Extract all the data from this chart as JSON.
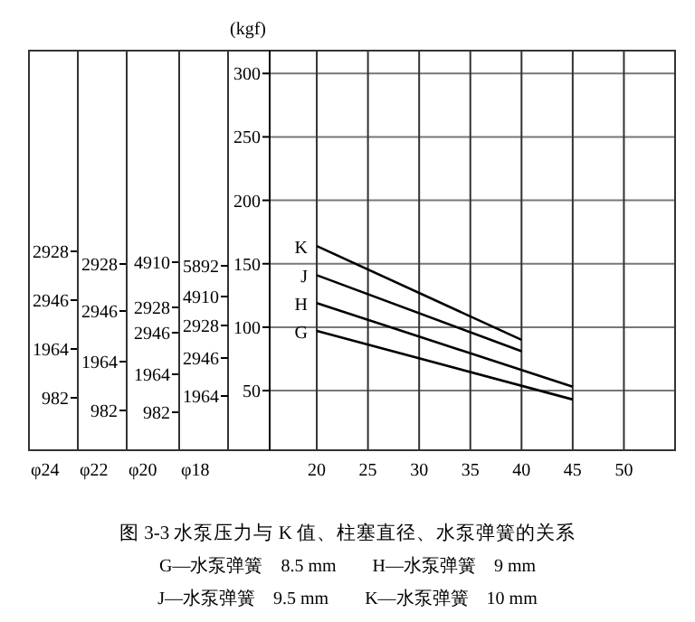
{
  "chart_data": [
    {
      "type": "line",
      "title": "图 3-3 水泵压力与 K 值、柱塞直径、水泵弹簧的关系",
      "ylabel": "(kgf)",
      "xlim": [
        15.4,
        55
      ],
      "xticks": [
        20,
        25,
        30,
        35,
        40,
        45,
        50
      ],
      "ylim": [
        3,
        318
      ],
      "yticks": [
        50,
        100,
        150,
        200,
        250,
        300
      ],
      "grid": true,
      "series": [
        {
          "name": "K",
          "color": "#000000",
          "x": [
            20,
            40
          ],
          "values": [
            164,
            90
          ]
        },
        {
          "name": "J",
          "color": "#000000",
          "x": [
            20,
            40
          ],
          "values": [
            141,
            81
          ]
        },
        {
          "name": "H",
          "color": "#000000",
          "x": [
            20,
            45
          ],
          "values": [
            119,
            53
          ]
        },
        {
          "name": "G",
          "color": "#000000",
          "x": [
            20,
            45
          ],
          "values": [
            97,
            43
          ]
        }
      ],
      "annotations": [
        "G—水泵弹簧　8.5 mm",
        "H—水泵弹簧　9 mm",
        "J—水泵弹簧　9.5 mm",
        "K—水泵弹簧　10 mm"
      ]
    },
    {
      "type": "other",
      "xlabel": "φ24",
      "annotations": [
        "2928",
        "2946",
        "1964",
        "982"
      ]
    },
    {
      "type": "other",
      "xlabel": "φ22",
      "annotations": [
        "2928",
        "2946",
        "1964",
        "982"
      ]
    },
    {
      "type": "other",
      "xlabel": "φ20",
      "annotations": [
        "4910",
        "2928",
        "2946",
        "1964",
        "982"
      ]
    },
    {
      "type": "other",
      "xlabel": "φ18",
      "annotations": [
        "5892",
        "4910",
        "2928",
        "2946",
        "1964"
      ]
    }
  ]
}
